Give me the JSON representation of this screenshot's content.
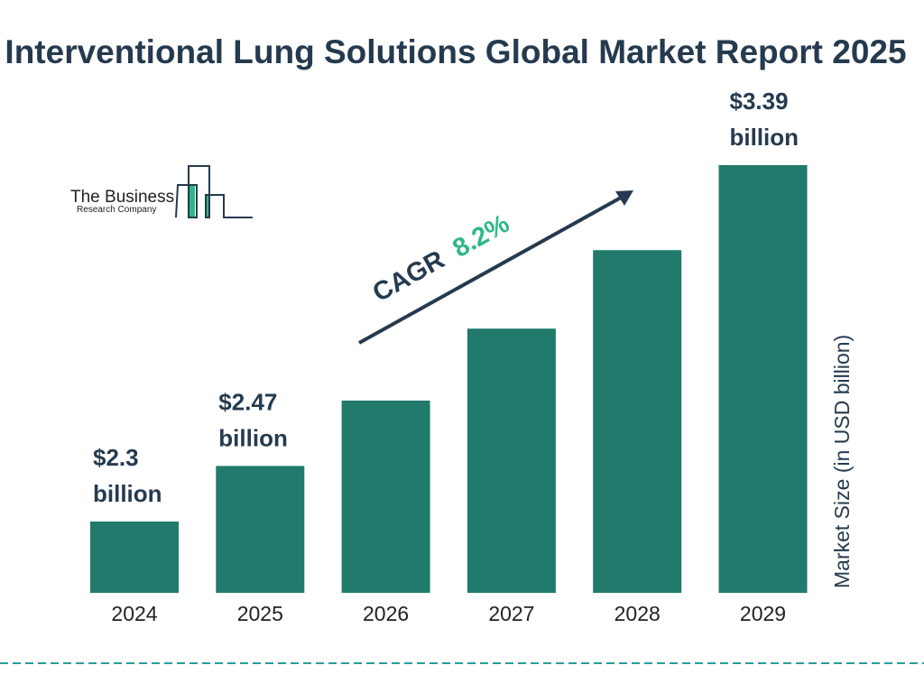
{
  "chart_data": {
    "type": "bar",
    "title": "Interventional Lung Solutions Global Market Report 2025",
    "ylabel": "Market Size (in USD billion)",
    "xlabel": "",
    "categories": [
      "2024",
      "2025",
      "2026",
      "2027",
      "2028",
      "2029"
    ],
    "values": [
      2.3,
      2.47,
      2.67,
      2.89,
      3.13,
      3.39
    ],
    "data_labels": [
      "$2.3 billion",
      "$2.47 billion",
      "",
      "",
      "",
      "$3.39 billion"
    ],
    "bar_color": "#217a6b",
    "grid": false,
    "annotation": {
      "cagr_label": "CAGR",
      "cagr_value": "8.2%",
      "cagr_color": "#2db887",
      "text_color": "#253a4f"
    }
  },
  "logo": {
    "line1": "The Business",
    "line2": "Research Company"
  },
  "footer_line_color": "#2a9d9d"
}
